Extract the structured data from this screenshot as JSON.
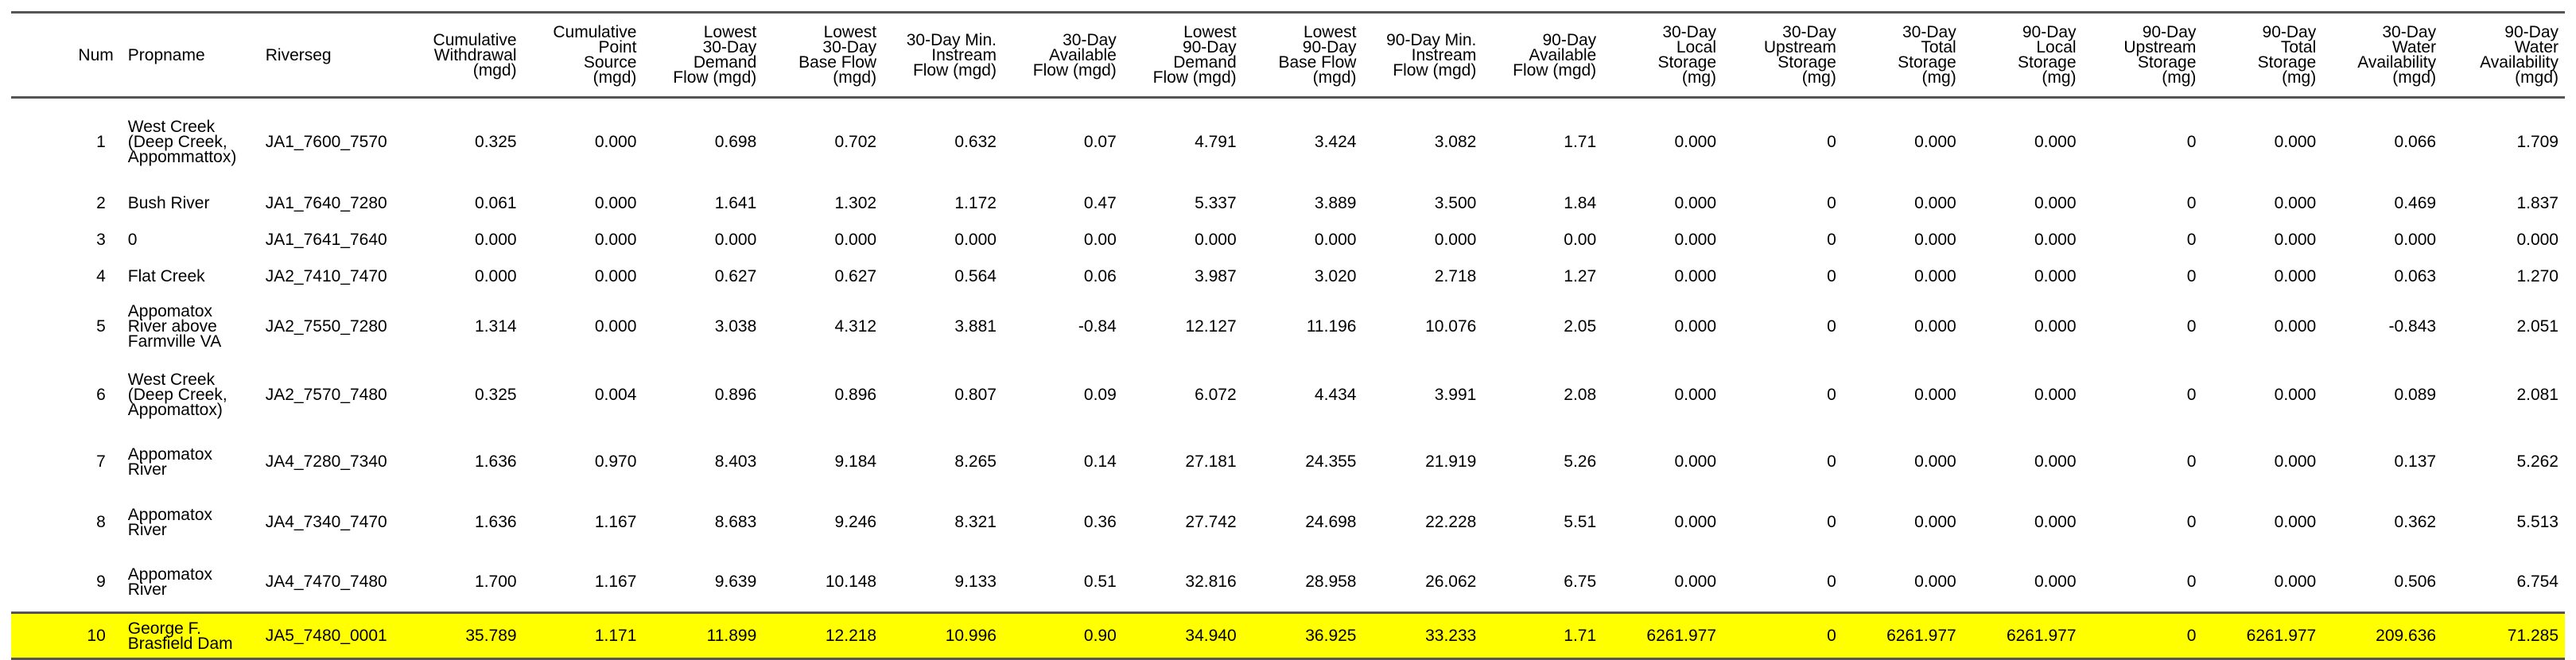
{
  "columns": [
    {
      "key": "num",
      "label": "Num"
    },
    {
      "key": "propname",
      "label": "Propname"
    },
    {
      "key": "riverseg",
      "label": "Riverseg"
    },
    {
      "key": "cum_withdrawal",
      "label": "Cumulative Withdrawal (mgd)"
    },
    {
      "key": "cum_point_source",
      "label": "Cumulative Point Source (mgd)"
    },
    {
      "key": "lowest_30day_demand_flow",
      "label": "Lowest 30-Day Demand Flow (mgd)"
    },
    {
      "key": "lowest_30day_base_flow",
      "label": "Lowest 30-Day Base Flow (mgd)"
    },
    {
      "key": "min_instream_30day",
      "label": "30-Day Min. Instream Flow (mgd)"
    },
    {
      "key": "avail_flow_30day",
      "label": "30-Day Available Flow (mgd)"
    },
    {
      "key": "lowest_90day_demand_flow",
      "label": "Lowest 90-Day Demand Flow (mgd)"
    },
    {
      "key": "lowest_90day_base_flow",
      "label": "Lowest 90-Day Base Flow (mgd)"
    },
    {
      "key": "min_instream_90day",
      "label": "90-Day Min. Instream Flow (mgd)"
    },
    {
      "key": "avail_flow_90day",
      "label": "90-Day Available Flow (mgd)"
    },
    {
      "key": "local_storage_30day",
      "label": "30-Day Local Storage (mg)"
    },
    {
      "key": "upstream_storage_30day",
      "label": "30-Day Upstream Storage (mg)"
    },
    {
      "key": "total_storage_30day",
      "label": "30-Day Total Storage (mg)"
    },
    {
      "key": "local_storage_90day",
      "label": "90-Day Local Storage (mg)"
    },
    {
      "key": "upstream_storage_90day",
      "label": "90-Day Upstream Storage (mg)"
    },
    {
      "key": "total_storage_90day",
      "label": "90-Day Total Storage (mg)"
    },
    {
      "key": "water_avail_30day",
      "label": "30-Day Water Availability (mgd)"
    },
    {
      "key": "water_avail_90day",
      "label": "90-Day Water Availability (mgd)"
    }
  ],
  "header_lines": [
    [
      "Num"
    ],
    [
      "Propname"
    ],
    [
      "Riverseg"
    ],
    [
      "Cumulative",
      "Withdrawal",
      "(mgd)"
    ],
    [
      "Cumulative",
      "Point",
      "Source",
      "(mgd)"
    ],
    [
      "Lowest",
      "30-Day",
      "Demand",
      "Flow (mgd)"
    ],
    [
      "Lowest",
      "30-Day",
      "Base Flow",
      "(mgd)"
    ],
    [
      "30-Day Min.",
      "Instream",
      "Flow (mgd)"
    ],
    [
      "30-Day",
      "Available",
      "Flow (mgd)"
    ],
    [
      "Lowest",
      "90-Day",
      "Demand",
      "Flow (mgd)"
    ],
    [
      "Lowest",
      "90-Day",
      "Base Flow",
      "(mgd)"
    ],
    [
      "90-Day Min.",
      "Instream",
      "Flow (mgd)"
    ],
    [
      "90-Day",
      "Available",
      "Flow (mgd)"
    ],
    [
      "30-Day",
      "Local",
      "Storage",
      "(mg)"
    ],
    [
      "30-Day",
      "Upstream",
      "Storage",
      "(mg)"
    ],
    [
      "30-Day",
      "Total",
      "Storage",
      "(mg)"
    ],
    [
      "90-Day",
      "Local",
      "Storage",
      "(mg)"
    ],
    [
      "90-Day",
      "Upstream",
      "Storage",
      "(mg)"
    ],
    [
      "90-Day",
      "Total",
      "Storage",
      "(mg)"
    ],
    [
      "30-Day",
      "Water",
      "Availability",
      "(mgd)"
    ],
    [
      "90-Day",
      "Water",
      "Availability",
      "(mgd)"
    ]
  ],
  "rows": [
    {
      "cells": [
        "1",
        "West Creek (Deep Creek, Appommattox)",
        "JA1_7600_7570",
        "0.325",
        "0.000",
        "0.698",
        "0.702",
        "0.632",
        "0.07",
        "4.791",
        "3.424",
        "3.082",
        "1.71",
        "0.000",
        "0",
        "0.000",
        "0.000",
        "0",
        "0.000",
        "0.066",
        "1.709"
      ]
    },
    {
      "cells": [
        "2",
        "Bush River",
        "JA1_7640_7280",
        "0.061",
        "0.000",
        "1.641",
        "1.302",
        "1.172",
        "0.47",
        "5.337",
        "3.889",
        "3.500",
        "1.84",
        "0.000",
        "0",
        "0.000",
        "0.000",
        "0",
        "0.000",
        "0.469",
        "1.837"
      ]
    },
    {
      "cells": [
        "3",
        "0",
        "JA1_7641_7640",
        "0.000",
        "0.000",
        "0.000",
        "0.000",
        "0.000",
        "0.00",
        "0.000",
        "0.000",
        "0.000",
        "0.00",
        "0.000",
        "0",
        "0.000",
        "0.000",
        "0",
        "0.000",
        "0.000",
        "0.000"
      ]
    },
    {
      "cells": [
        "4",
        "Flat Creek",
        "JA2_7410_7470",
        "0.000",
        "0.000",
        "0.627",
        "0.627",
        "0.564",
        "0.06",
        "3.987",
        "3.020",
        "2.718",
        "1.27",
        "0.000",
        "0",
        "0.000",
        "0.000",
        "0",
        "0.000",
        "0.063",
        "1.270"
      ]
    },
    {
      "cells": [
        "5",
        "Appomatox River above Farmville VA",
        "JA2_7550_7280",
        "1.314",
        "0.000",
        "3.038",
        "4.312",
        "3.881",
        "-0.84",
        "12.127",
        "11.196",
        "10.076",
        "2.05",
        "0.000",
        "0",
        "0.000",
        "0.000",
        "0",
        "0.000",
        "-0.843",
        "2.051"
      ]
    },
    {
      "cells": [
        "6",
        "West Creek (Deep Creek, Appomattox)",
        "JA2_7570_7480",
        "0.325",
        "0.004",
        "0.896",
        "0.896",
        "0.807",
        "0.09",
        "6.072",
        "4.434",
        "3.991",
        "2.08",
        "0.000",
        "0",
        "0.000",
        "0.000",
        "0",
        "0.000",
        "0.089",
        "2.081"
      ]
    },
    {
      "cells": [
        "7",
        "Appomatox River",
        "JA4_7280_7340",
        "1.636",
        "0.970",
        "8.403",
        "9.184",
        "8.265",
        "0.14",
        "27.181",
        "24.355",
        "21.919",
        "5.26",
        "0.000",
        "0",
        "0.000",
        "0.000",
        "0",
        "0.000",
        "0.137",
        "5.262"
      ]
    },
    {
      "cells": [
        "8",
        "Appomatox River",
        "JA4_7340_7470",
        "1.636",
        "1.167",
        "8.683",
        "9.246",
        "8.321",
        "0.36",
        "27.742",
        "24.698",
        "22.228",
        "5.51",
        "0.000",
        "0",
        "0.000",
        "0.000",
        "0",
        "0.000",
        "0.362",
        "5.513"
      ]
    },
    {
      "cells": [
        "9",
        "Appomatox River",
        "JA4_7470_7480",
        "1.700",
        "1.167",
        "9.639",
        "10.148",
        "9.133",
        "0.51",
        "32.816",
        "28.958",
        "26.062",
        "6.75",
        "0.000",
        "0",
        "0.000",
        "0.000",
        "0",
        "0.000",
        "0.506",
        "6.754"
      ]
    },
    {
      "cells": [
        "10",
        "George F. Brasfield Dam",
        "JA5_7480_0001",
        "35.789",
        "1.171",
        "11.899",
        "12.218",
        "10.996",
        "0.90",
        "34.940",
        "36.925",
        "33.233",
        "1.71",
        "6261.977",
        "0",
        "6261.977",
        "6261.977",
        "0",
        "6261.977",
        "209.636",
        "71.285"
      ]
    }
  ],
  "highlight_color": "#ffff00",
  "highlight_row_index": 9
}
